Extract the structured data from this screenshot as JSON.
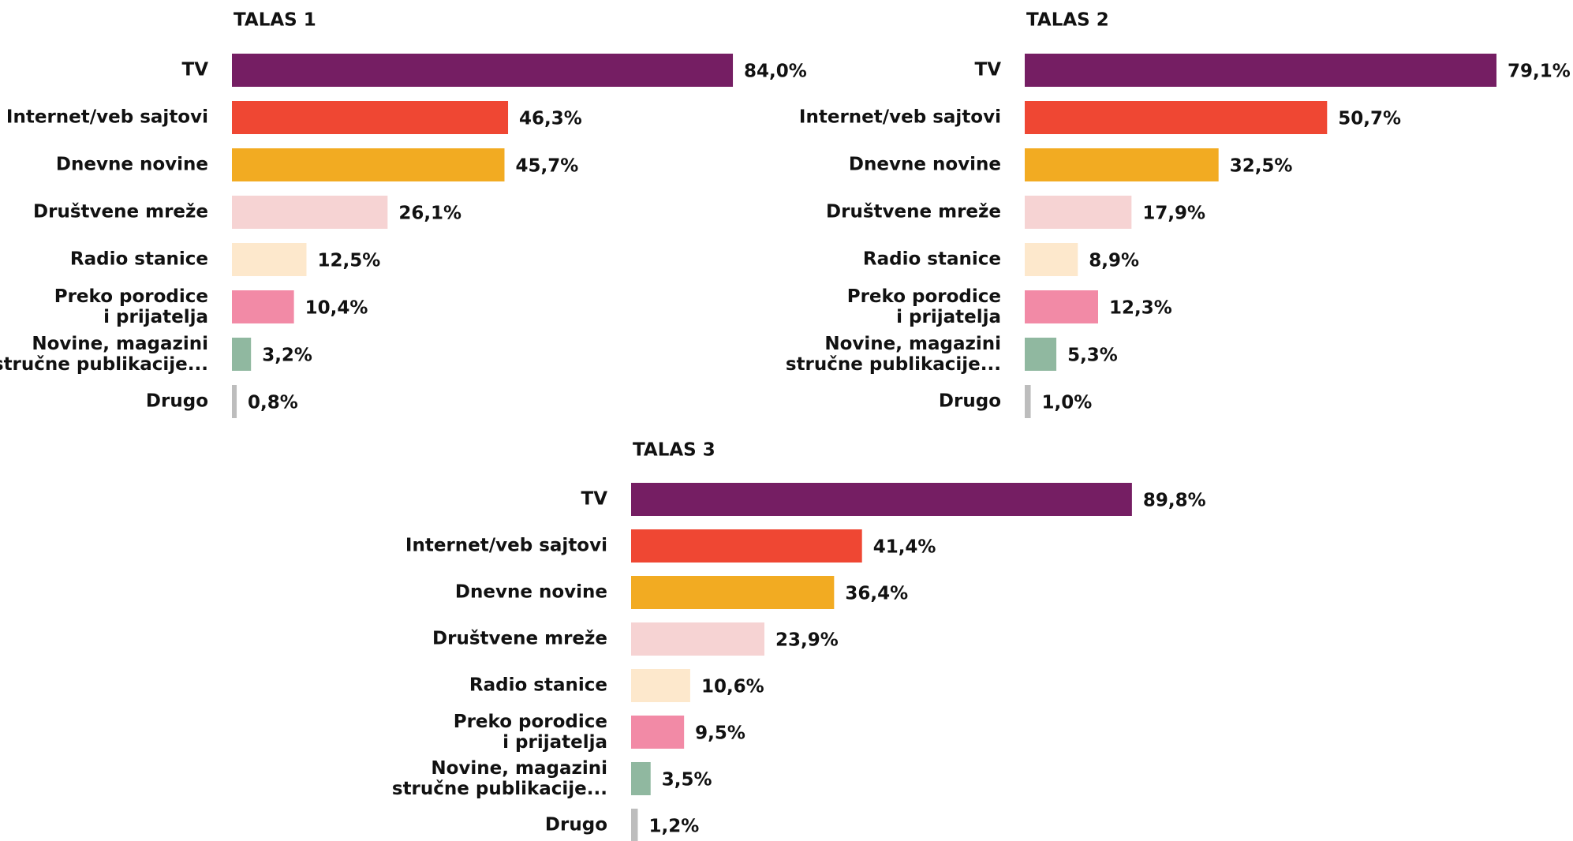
{
  "chart_data": [
    {
      "type": "bar",
      "title": "TALAS 1",
      "categories": [
        "TV",
        "Internet/veb sajtovi",
        "Dnevne novine",
        "Društvene mreže",
        "Radio stanice",
        "Preko porodice\ni prijatelja",
        "Novine, magazini\nstručne publikacije...",
        "Drugo"
      ],
      "values": [
        84.0,
        46.3,
        45.7,
        26.1,
        12.5,
        10.4,
        3.2,
        0.8
      ],
      "value_labels": [
        "84,0%",
        "46,3%",
        "45,7%",
        "26,1%",
        "12,5%",
        "10,4%",
        "3,2%",
        "0,8%"
      ],
      "colors": [
        "#751e63",
        "#ef4733",
        "#f2ab22",
        "#f6d3d3",
        "#fde8cc",
        "#f28aa6",
        "#90b8a0",
        "#bdbdbd"
      ],
      "xlim": [
        0,
        100
      ]
    },
    {
      "type": "bar",
      "title": "TALAS 2",
      "categories": [
        "TV",
        "Internet/veb sajtovi",
        "Dnevne novine",
        "Društvene mreže",
        "Radio stanice",
        "Preko porodice\ni prijatelja",
        "Novine, magazini\nstručne publikacije...",
        "Drugo"
      ],
      "values": [
        79.1,
        50.7,
        32.5,
        17.9,
        8.9,
        12.3,
        5.3,
        1.0
      ],
      "value_labels": [
        "79,1%",
        "50,7%",
        "32,5%",
        "17,9%",
        "8,9%",
        "12,3%",
        "5,3%",
        "1,0%"
      ],
      "colors": [
        "#751e63",
        "#ef4733",
        "#f2ab22",
        "#f6d3d3",
        "#fde8cc",
        "#f28aa6",
        "#90b8a0",
        "#bdbdbd"
      ],
      "xlim": [
        0,
        100
      ]
    },
    {
      "type": "bar",
      "title": "TALAS 3",
      "categories": [
        "TV",
        "Internet/veb sajtovi",
        "Dnevne novine",
        "Društvene mreže",
        "Radio stanice",
        "Preko porodice\ni prijatelja",
        "Novine, magazini\nstručne publikacije...",
        "Drugo"
      ],
      "values": [
        89.8,
        41.4,
        36.4,
        23.9,
        10.6,
        9.5,
        3.5,
        1.2
      ],
      "value_labels": [
        "89,8%",
        "41,4%",
        "36,4%",
        "23,9%",
        "10,6%",
        "9,5%",
        "3,5%",
        "1,2%"
      ],
      "colors": [
        "#751e63",
        "#ef4733",
        "#f2ab22",
        "#f6d3d3",
        "#fde8cc",
        "#f28aa6",
        "#90b8a0",
        "#bdbdbd"
      ],
      "xlim": [
        0,
        100
      ]
    }
  ]
}
